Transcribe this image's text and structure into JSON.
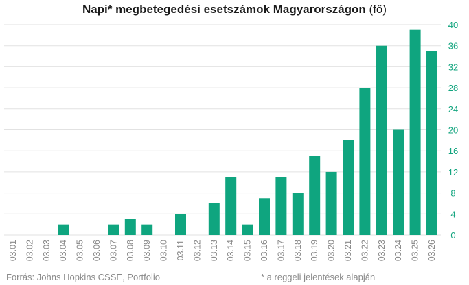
{
  "chart_data": {
    "type": "bar",
    "title": "Napi* megbetegedési esetszámok Magyarországon",
    "title_unit": "(fő)",
    "xlabel": "",
    "ylabel": "",
    "categories": [
      "03.01",
      "03.02",
      "03.03",
      "03.04",
      "03.05",
      "03.06",
      "03.07",
      "03.08",
      "03.09",
      "03.10",
      "03.11",
      "03.12",
      "03.13",
      "03.14",
      "03.15",
      "03.16",
      "03.17",
      "03.18",
      "03.19",
      "03.20",
      "03.21",
      "03.22",
      "03.23",
      "03.24",
      "03.25",
      "03.26"
    ],
    "values": [
      0,
      0,
      0,
      2,
      0,
      0,
      2,
      3,
      2,
      0,
      4,
      0,
      6,
      11,
      2,
      7,
      11,
      8,
      15,
      12,
      18,
      28,
      36,
      20,
      39,
      35
    ],
    "ylim": [
      0,
      40
    ],
    "yticks": [
      "0",
      "4",
      "8",
      "12",
      "16",
      "20",
      "24",
      "28",
      "32",
      "36",
      "40"
    ],
    "y_axis_side": "right",
    "grid": true,
    "colors": {
      "bar": "#0fa57f",
      "ytick": "#13a57f",
      "grid": "#e2e2e2"
    }
  },
  "footer": {
    "source": "Forrás: Johns Hopkins CSSE, Portfolio",
    "note": "* a reggeli jelentések alapján"
  }
}
